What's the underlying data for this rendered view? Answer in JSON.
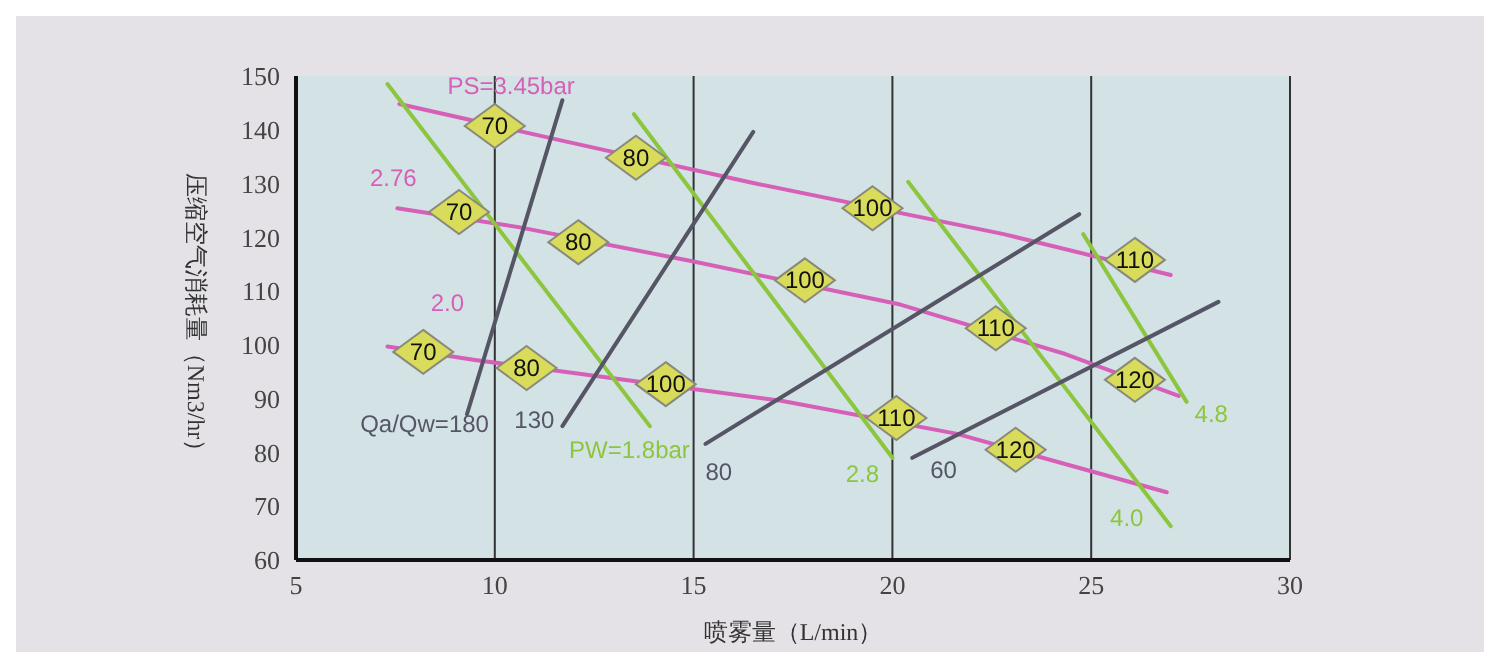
{
  "chart_data": {
    "type": "line",
    "xlabel": "喷雾量（L/min）",
    "ylabel": "压缩空气消耗量（Nm3/hr）",
    "xlim": [
      5,
      30
    ],
    "xticks": [
      5,
      10,
      15,
      20,
      25,
      30
    ],
    "ylim": [
      60,
      150
    ],
    "yticks": [
      60,
      70,
      80,
      90,
      100,
      110,
      120,
      130,
      140,
      150
    ],
    "grid": true,
    "series": [
      {
        "name": "PS=3.45bar",
        "color": "#d660b8",
        "x": [
          7.6,
          11.8,
          16.5,
          22.8,
          27.0
        ],
        "values": [
          144.8,
          137.8,
          130.1,
          120.6,
          113
        ]
      },
      {
        "name": "2.76",
        "color": "#d660b8",
        "x": [
          7.55,
          10.6,
          15.0,
          20.2,
          24.35,
          27.2
        ],
        "values": [
          125.4,
          121.9,
          115.5,
          107.5,
          98.3,
          90.5
        ]
      },
      {
        "name": "2.0",
        "color": "#d660b8",
        "x": [
          7.3,
          9.5,
          12.55,
          17.2,
          21.6,
          25.0,
          26.9
        ],
        "values": [
          99.7,
          97.2,
          94.2,
          89.6,
          83.5,
          76.5,
          72.6
        ]
      },
      {
        "name": "PW=1.8bar",
        "color": "#8cc63f",
        "x": [
          13.9,
          7.3
        ],
        "values": [
          84.9,
          148.5
        ]
      },
      {
        "name": "2.8",
        "color": "#8cc63f",
        "x": [
          20.0,
          13.5
        ],
        "values": [
          79.0,
          142.9
        ]
      },
      {
        "name": "4.0",
        "color": "#8cc63f",
        "x": [
          27.0,
          20.4
        ],
        "values": [
          66.3,
          130.3
        ]
      },
      {
        "name": "4.8",
        "color": "#8cc63f",
        "x": [
          27.4,
          24.8
        ],
        "values": [
          89.4,
          120.6
        ]
      },
      {
        "name": "Qa/Qw=180",
        "color": "#555566",
        "x": [
          9.3,
          11.7
        ],
        "values": [
          87.1,
          145.5
        ]
      },
      {
        "name": "130",
        "color": "#555566",
        "x": [
          11.7,
          16.5
        ],
        "values": [
          84.9,
          139.6
        ]
      },
      {
        "name": "80",
        "color": "#555566",
        "x": [
          15.3,
          24.7
        ],
        "values": [
          81.6,
          124.3
        ]
      },
      {
        "name": "60",
        "color": "#555566",
        "x": [
          20.5,
          28.2
        ],
        "values": [
          79.0,
          108.0
        ]
      }
    ],
    "annotations": [
      {
        "text": "70",
        "x": 10.0,
        "y": 140.7
      },
      {
        "text": "80",
        "x": 13.55,
        "y": 134.8
      },
      {
        "text": "100",
        "x": 19.5,
        "y": 125.4
      },
      {
        "text": "110",
        "x": 26.1,
        "y": 115.8
      },
      {
        "text": "70",
        "x": 9.1,
        "y": 124.7
      },
      {
        "text": "80",
        "x": 12.1,
        "y": 119.1
      },
      {
        "text": "100",
        "x": 17.8,
        "y": 112
      },
      {
        "text": "110",
        "x": 22.6,
        "y": 103.1
      },
      {
        "text": "120",
        "x": 26.1,
        "y": 93.5
      },
      {
        "text": "70",
        "x": 8.2,
        "y": 98.7
      },
      {
        "text": "80",
        "x": 10.8,
        "y": 95.7
      },
      {
        "text": "100",
        "x": 14.3,
        "y": 92.7
      },
      {
        "text": "110",
        "x": 20.1,
        "y": 86.4
      },
      {
        "text": "120",
        "x": 23.1,
        "y": 80.5
      }
    ]
  }
}
